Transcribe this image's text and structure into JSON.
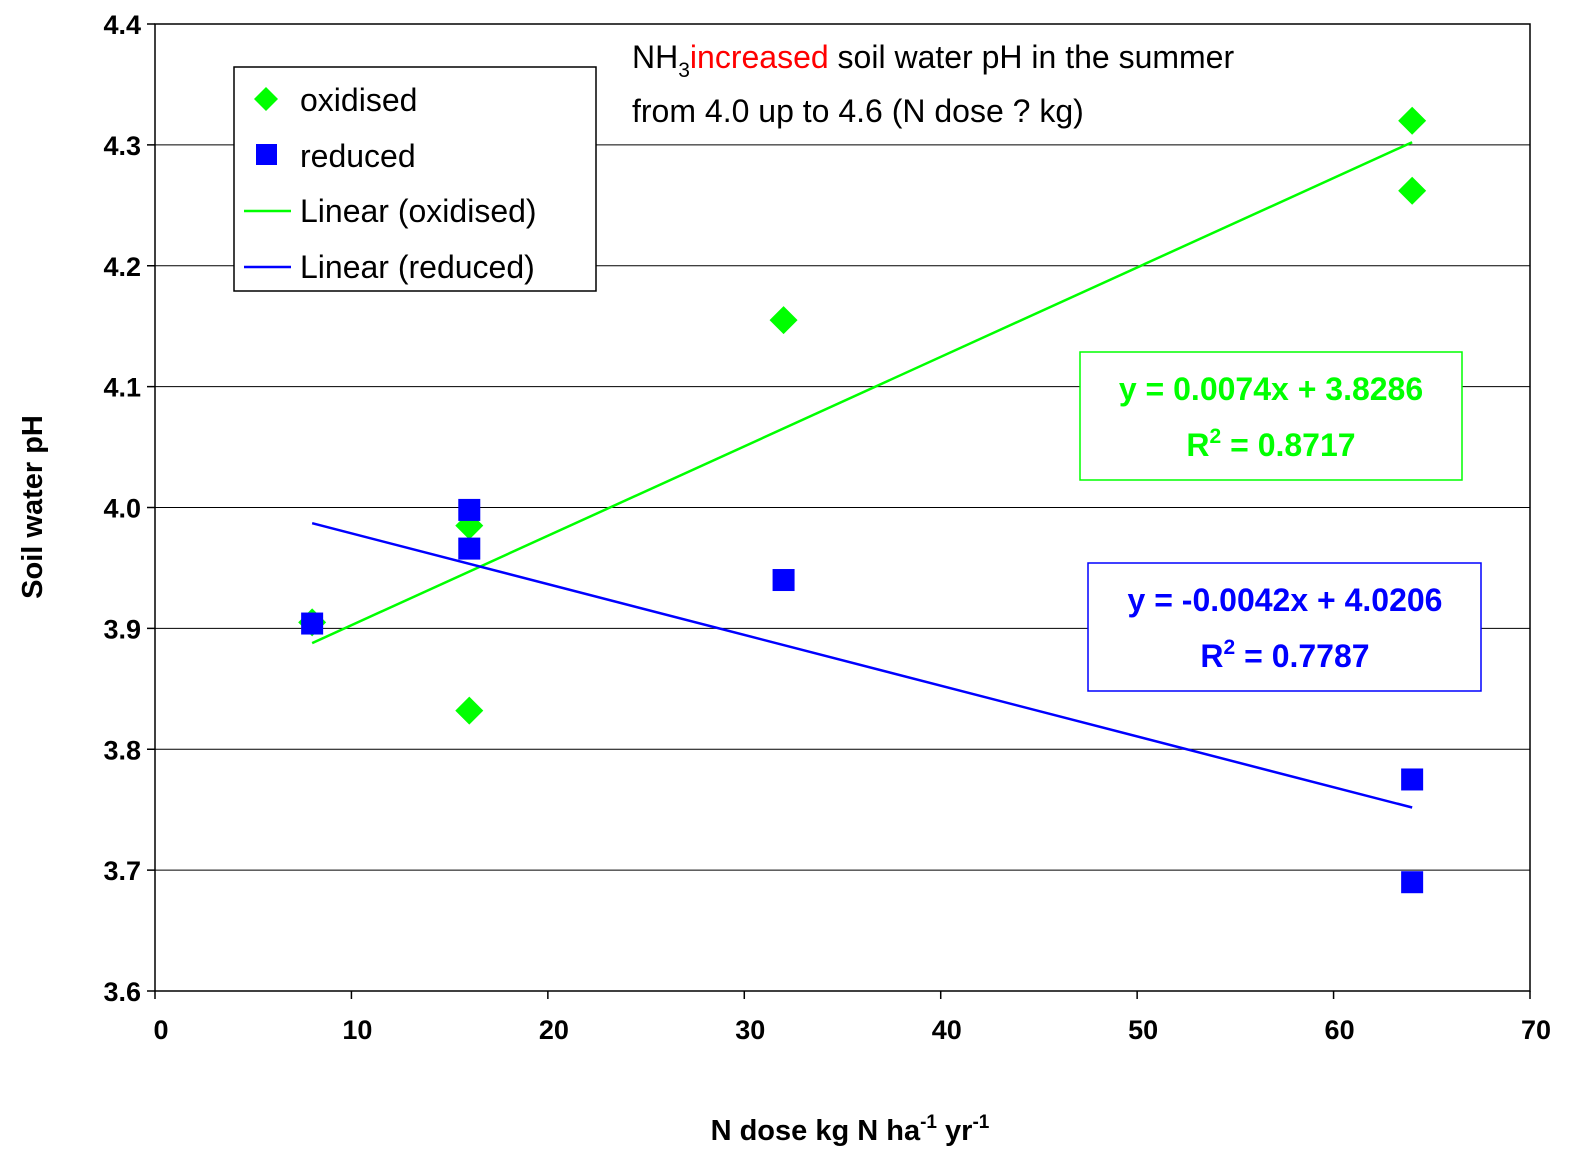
{
  "chart_data": {
    "type": "scatter",
    "xlabel": {
      "main": "N dose kg N ha",
      "sup1": "-1",
      "mid": " yr",
      "sup2": "-1"
    },
    "ylabel": "Soil water pH",
    "xlim": [
      0,
      70
    ],
    "ylim": [
      3.6,
      4.4
    ],
    "x_ticks": [
      "0",
      "10",
      "20",
      "30",
      "40",
      "50",
      "60",
      "70"
    ],
    "y_ticks": [
      "3.6",
      "3.7",
      "3.8",
      "3.9",
      "4.0",
      "4.1",
      "4.2",
      "4.3",
      "4.4"
    ],
    "grid": "horizontal",
    "series": [
      {
        "name": "oxidised",
        "marker": "diamond",
        "color": "#00ff00",
        "points": [
          [
            8,
            3.905
          ],
          [
            16,
            3.985
          ],
          [
            16,
            3.832
          ],
          [
            32,
            4.155
          ],
          [
            64,
            4.32
          ],
          [
            64,
            4.262
          ]
        ]
      },
      {
        "name": "reduced",
        "marker": "square",
        "color": "#0000ff",
        "points": [
          [
            8,
            3.904
          ],
          [
            16,
            3.998
          ],
          [
            16,
            3.966
          ],
          [
            32,
            3.94
          ],
          [
            64,
            3.775
          ],
          [
            64,
            3.69
          ]
        ]
      }
    ],
    "trendlines": [
      {
        "name": "Linear (oxidised)",
        "color": "#00ff00",
        "slope": 0.0074,
        "intercept": 3.8286,
        "x_range": [
          8,
          64
        ],
        "equation": "y = 0.0074x + 3.8286",
        "r2_label": "R",
        "r2_sup": "2",
        "r2_value": " = 0.8717"
      },
      {
        "name": "Linear (reduced)",
        "color": "#0000ff",
        "slope": -0.0042,
        "intercept": 4.0206,
        "x_range": [
          8,
          64
        ],
        "equation": "y = -0.0042x + 4.0206",
        "r2_label": "R",
        "r2_sup": "2",
        "r2_value": " = 0.7787"
      }
    ],
    "legend": {
      "placement": "top-left",
      "items": [
        "oxidised",
        "reduced",
        "Linear (oxidised)",
        "Linear (reduced)"
      ]
    },
    "annotation": {
      "prefix": "NH",
      "sub": "3",
      "highlight": "increased",
      "highlight_color": "#ff0000",
      "rest_line1": " soil water pH in the summer",
      "line2": "from 4.0 up to 4.6 (N dose ? kg)"
    }
  }
}
